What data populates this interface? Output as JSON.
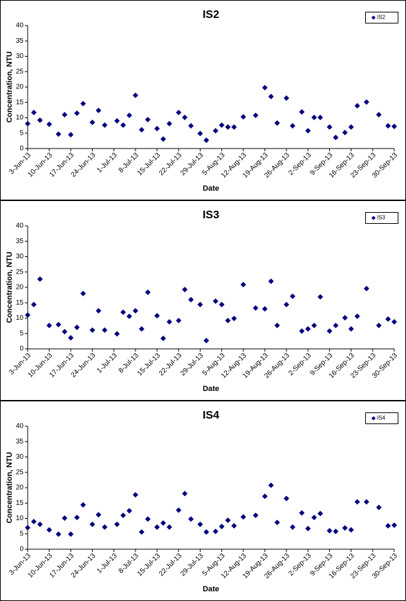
{
  "chart_data": [
    {
      "type": "scatter",
      "title": "IS2",
      "x_label": "Date",
      "y_label": "Concentration, NTU",
      "legend": "upper right",
      "xlim": [
        "2013-06-03",
        "2013-09-30"
      ],
      "ylim": [
        0,
        40
      ],
      "yticks": [
        0,
        5,
        10,
        15,
        20,
        25,
        30,
        35,
        40
      ],
      "xticks": [
        {
          "value": "2013-06-03",
          "label": "3-Jun-13"
        },
        {
          "value": "2013-06-10",
          "label": "10-Jun-13"
        },
        {
          "value": "2013-06-17",
          "label": "17-Jun-13"
        },
        {
          "value": "2013-06-24",
          "label": "24-Jun-13"
        },
        {
          "value": "2013-07-01",
          "label": "1-Jul-13"
        },
        {
          "value": "2013-07-08",
          "label": "8-Jul-13"
        },
        {
          "value": "2013-07-15",
          "label": "15-Jul-13"
        },
        {
          "value": "2013-07-22",
          "label": "22-Jul-13"
        },
        {
          "value": "2013-07-29",
          "label": "29-Jul-13"
        },
        {
          "value": "2013-08-05",
          "label": "5-Aug-13"
        },
        {
          "value": "2013-08-12",
          "label": "12-Aug-13"
        },
        {
          "value": "2013-08-19",
          "label": "19-Aug-13"
        },
        {
          "value": "2013-08-26",
          "label": "26-Aug-13"
        },
        {
          "value": "2013-09-02",
          "label": "2-Sep-13"
        },
        {
          "value": "2013-09-09",
          "label": "9-Sep-13"
        },
        {
          "value": "2013-09-16",
          "label": "16-Sep-13"
        },
        {
          "value": "2013-09-23",
          "label": "23-Sep-13"
        },
        {
          "value": "2013-09-30",
          "label": "30-Sep-13"
        }
      ],
      "x": [
        "2013-06-03",
        "2013-06-05",
        "2013-06-07",
        "2013-06-10",
        "2013-06-13",
        "2013-06-15",
        "2013-06-17",
        "2013-06-19",
        "2013-06-21",
        "2013-06-24",
        "2013-06-26",
        "2013-06-28",
        "2013-07-02",
        "2013-07-04",
        "2013-07-06",
        "2013-07-08",
        "2013-07-10",
        "2013-07-12",
        "2013-07-15",
        "2013-07-17",
        "2013-07-19",
        "2013-07-22",
        "2013-07-24",
        "2013-07-26",
        "2013-07-29",
        "2013-07-31",
        "2013-08-03",
        "2013-08-05",
        "2013-08-07",
        "2013-08-09",
        "2013-08-12",
        "2013-08-16",
        "2013-08-19",
        "2013-08-21",
        "2013-08-23",
        "2013-08-26",
        "2013-08-28",
        "2013-08-31",
        "2013-09-02",
        "2013-09-04",
        "2013-09-06",
        "2013-09-09",
        "2013-09-11",
        "2013-09-14",
        "2013-09-16",
        "2013-09-18",
        "2013-09-21",
        "2013-09-25",
        "2013-09-28",
        "2013-09-30"
      ],
      "series": [
        {
          "name": "IS2",
          "color": "#000080",
          "values": [
            8.1,
            11.7,
            9.2,
            7.9,
            4.7,
            11.0,
            4.5,
            11.5,
            14.6,
            8.5,
            12.4,
            7.6,
            9.0,
            7.6,
            10.8,
            17.3,
            6.1,
            9.4,
            6.5,
            3.1,
            8.1,
            11.7,
            10.1,
            7.4,
            4.9,
            2.7,
            5.8,
            7.6,
            7.0,
            7.0,
            10.3,
            10.8,
            19.8,
            16.9,
            8.3,
            16.4,
            7.4,
            11.9,
            5.8,
            10.1,
            10.1,
            7.0,
            3.6,
            5.2,
            7.0,
            13.9,
            15.1,
            11.0,
            7.4,
            7.2
          ]
        }
      ]
    },
    {
      "type": "scatter",
      "title": "IS3",
      "x_label": "Date",
      "y_label": "Concentration, NTU",
      "legend": "upper right",
      "xlim": [
        "2013-06-03",
        "2013-09-30"
      ],
      "ylim": [
        0,
        40
      ],
      "yticks": [
        0,
        5,
        10,
        15,
        20,
        25,
        30,
        35,
        40
      ],
      "xticks": [
        {
          "value": "2013-06-03",
          "label": "3-Jun-13"
        },
        {
          "value": "2013-06-10",
          "label": "10-Jun-13"
        },
        {
          "value": "2013-06-17",
          "label": "17-Jun-13"
        },
        {
          "value": "2013-06-24",
          "label": "24-Jun-13"
        },
        {
          "value": "2013-07-01",
          "label": "1-Jul-13"
        },
        {
          "value": "2013-07-08",
          "label": "8-Jul-13"
        },
        {
          "value": "2013-07-15",
          "label": "15-Jul-13"
        },
        {
          "value": "2013-07-22",
          "label": "22-Jul-13"
        },
        {
          "value": "2013-07-29",
          "label": "29-Jul-13"
        },
        {
          "value": "2013-08-05",
          "label": "5-Aug-13"
        },
        {
          "value": "2013-08-12",
          "label": "12-Aug-13"
        },
        {
          "value": "2013-08-19",
          "label": "19-Aug-13"
        },
        {
          "value": "2013-08-26",
          "label": "26-Aug-13"
        },
        {
          "value": "2013-09-02",
          "label": "2-Sep-13"
        },
        {
          "value": "2013-09-09",
          "label": "9-Sep-13"
        },
        {
          "value": "2013-09-16",
          "label": "16-Sep-13"
        },
        {
          "value": "2013-09-23",
          "label": "23-Sep-13"
        },
        {
          "value": "2013-09-30",
          "label": "30-Sep-13"
        }
      ],
      "x": [
        "2013-06-03",
        "2013-06-05",
        "2013-06-07",
        "2013-06-10",
        "2013-06-13",
        "2013-06-15",
        "2013-06-17",
        "2013-06-19",
        "2013-06-21",
        "2013-06-24",
        "2013-06-26",
        "2013-06-28",
        "2013-07-02",
        "2013-07-04",
        "2013-07-06",
        "2013-07-08",
        "2013-07-10",
        "2013-07-12",
        "2013-07-15",
        "2013-07-17",
        "2013-07-19",
        "2013-07-22",
        "2013-07-24",
        "2013-07-26",
        "2013-07-29",
        "2013-07-31",
        "2013-08-03",
        "2013-08-05",
        "2013-08-07",
        "2013-08-09",
        "2013-08-12",
        "2013-08-16",
        "2013-08-19",
        "2013-08-21",
        "2013-08-23",
        "2013-08-26",
        "2013-08-28",
        "2013-08-31",
        "2013-09-02",
        "2013-09-04",
        "2013-09-06",
        "2013-09-09",
        "2013-09-11",
        "2013-09-14",
        "2013-09-16",
        "2013-09-18",
        "2013-09-21",
        "2013-09-25",
        "2013-09-28",
        "2013-09-30"
      ],
      "series": [
        {
          "name": "IS3",
          "color": "#000080",
          "values": [
            11.0,
            14.4,
            22.7,
            7.6,
            7.9,
            5.6,
            3.6,
            7.0,
            18.0,
            6.1,
            12.4,
            6.1,
            4.9,
            11.9,
            10.6,
            12.4,
            6.5,
            18.4,
            10.8,
            3.4,
            8.8,
            9.2,
            19.3,
            16.0,
            14.4,
            2.7,
            15.5,
            14.4,
            9.2,
            9.9,
            20.9,
            13.3,
            13.0,
            22.0,
            7.6,
            14.4,
            17.1,
            5.8,
            6.5,
            7.6,
            16.9,
            5.8,
            7.6,
            10.1,
            6.5,
            10.6,
            19.6,
            7.6,
            9.7,
            8.8
          ]
        }
      ]
    },
    {
      "type": "scatter",
      "title": "IS4",
      "x_label": "Date",
      "y_label": "Concentration, NTU",
      "legend": "upper right",
      "xlim": [
        "2013-06-03",
        "2013-09-30"
      ],
      "ylim": [
        0,
        40
      ],
      "yticks": [
        0,
        5,
        10,
        15,
        20,
        25,
        30,
        35,
        40
      ],
      "xticks": [
        {
          "value": "2013-06-03",
          "label": "3-Jun-13"
        },
        {
          "value": "2013-06-10",
          "label": "10-Jun-13"
        },
        {
          "value": "2013-06-17",
          "label": "17-Jun-13"
        },
        {
          "value": "2013-06-24",
          "label": "24-Jun-13"
        },
        {
          "value": "2013-07-01",
          "label": "1-Jul-13"
        },
        {
          "value": "2013-07-08",
          "label": "8-Jul-13"
        },
        {
          "value": "2013-07-15",
          "label": "15-Jul-13"
        },
        {
          "value": "2013-07-22",
          "label": "22-Jul-13"
        },
        {
          "value": "2013-07-29",
          "label": "29-Jul-13"
        },
        {
          "value": "2013-08-05",
          "label": "5-Aug-13"
        },
        {
          "value": "2013-08-12",
          "label": "12-Aug-13"
        },
        {
          "value": "2013-08-19",
          "label": "19-Aug-13"
        },
        {
          "value": "2013-08-26",
          "label": "26-Aug-13"
        },
        {
          "value": "2013-09-02",
          "label": "2-Sep-13"
        },
        {
          "value": "2013-09-09",
          "label": "9-Sep-13"
        },
        {
          "value": "2013-09-16",
          "label": "16-Sep-13"
        },
        {
          "value": "2013-09-23",
          "label": "23-Sep-13"
        },
        {
          "value": "2013-09-30",
          "label": "30-Sep-13"
        }
      ],
      "x": [
        "2013-06-03",
        "2013-06-05",
        "2013-06-07",
        "2013-06-10",
        "2013-06-13",
        "2013-06-15",
        "2013-06-17",
        "2013-06-19",
        "2013-06-21",
        "2013-06-24",
        "2013-06-26",
        "2013-06-28",
        "2013-07-02",
        "2013-07-04",
        "2013-07-06",
        "2013-07-08",
        "2013-07-10",
        "2013-07-12",
        "2013-07-15",
        "2013-07-17",
        "2013-07-19",
        "2013-07-22",
        "2013-07-24",
        "2013-07-26",
        "2013-07-29",
        "2013-07-31",
        "2013-08-03",
        "2013-08-05",
        "2013-08-07",
        "2013-08-09",
        "2013-08-12",
        "2013-08-16",
        "2013-08-19",
        "2013-08-21",
        "2013-08-23",
        "2013-08-26",
        "2013-08-28",
        "2013-08-31",
        "2013-09-02",
        "2013-09-04",
        "2013-09-06",
        "2013-09-09",
        "2013-09-11",
        "2013-09-14",
        "2013-09-16",
        "2013-09-18",
        "2013-09-21",
        "2013-09-25",
        "2013-09-28",
        "2013-09-30"
      ],
      "series": [
        {
          "name": "IS4",
          "color": "#000080",
          "values": [
            7.0,
            9.0,
            8.1,
            6.3,
            4.9,
            10.1,
            4.9,
            10.3,
            14.4,
            8.1,
            11.2,
            7.2,
            8.1,
            11.0,
            12.5,
            17.7,
            5.6,
            9.8,
            7.2,
            8.5,
            7.2,
            12.7,
            18.1,
            9.8,
            8.1,
            5.6,
            5.8,
            7.4,
            9.4,
            7.6,
            10.5,
            11.0,
            17.2,
            20.8,
            8.7,
            16.5,
            7.2,
            11.8,
            6.7,
            10.3,
            11.6,
            6.0,
            5.8,
            6.9,
            6.3,
            15.4,
            15.4,
            13.6,
            7.6,
            7.8
          ]
        }
      ]
    }
  ]
}
